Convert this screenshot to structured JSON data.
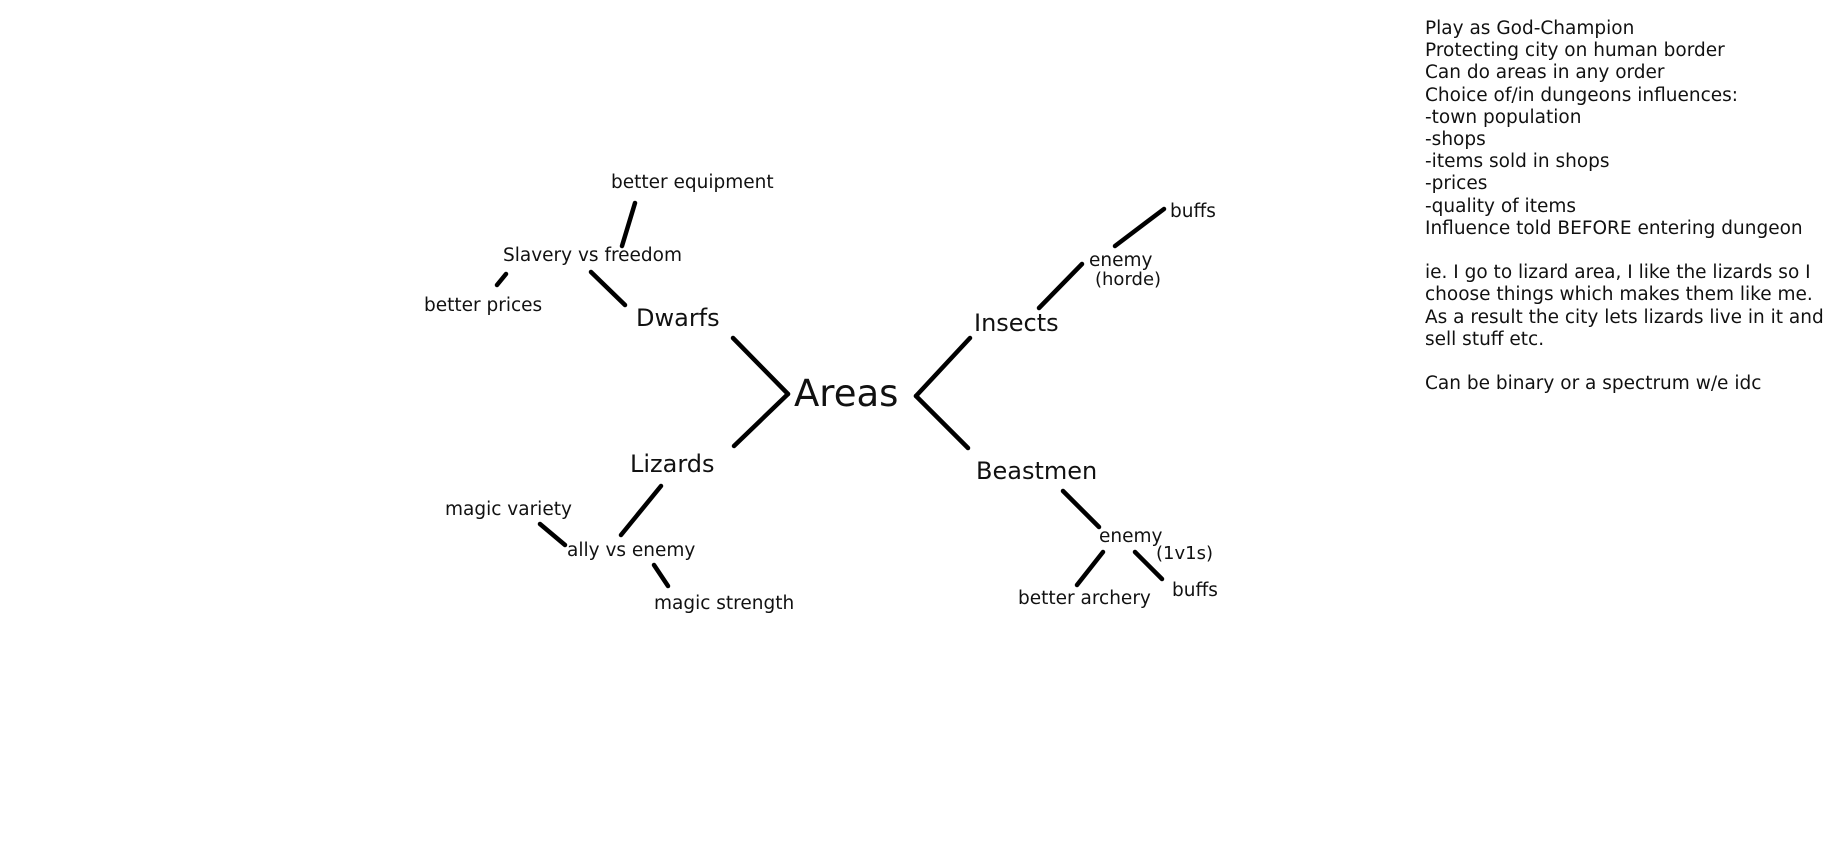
{
  "diagram": {
    "center": "Areas",
    "branches": {
      "dwarfs": {
        "label": "Dwarfs",
        "choice": "Slavery vs freedom",
        "outcome_a": "better equipment",
        "outcome_b": "better prices"
      },
      "insects": {
        "label": "Insects",
        "choice": "enemy",
        "choice_note": "(horde)",
        "outcome": "buffs"
      },
      "lizards": {
        "label": "Lizards",
        "choice": "ally vs enemy",
        "outcome_a": "magic variety",
        "outcome_b": "magic strength"
      },
      "beastmen": {
        "label": "Beastmen",
        "choice": "enemy",
        "choice_note": "(1v1s)",
        "outcome_a": "better archery",
        "outcome_b": "buffs"
      }
    }
  },
  "notes": [
    "Play as God-Champion",
    "Protecting city on human border",
    "Can do areas in any order",
    "Choice of/in dungeons influences:",
    "-town population",
    "-shops",
    "-items sold in shops",
    "-prices",
    "-quality of items",
    "Influence told BEFORE entering dungeon",
    "",
    "ie. I go to lizard area, I like the lizards so I",
    "choose things which makes them like me.",
    "As a result the city lets lizards live in it and",
    "sell stuff etc.",
    "",
    "Can be binary or a spectrum w/e idc"
  ]
}
